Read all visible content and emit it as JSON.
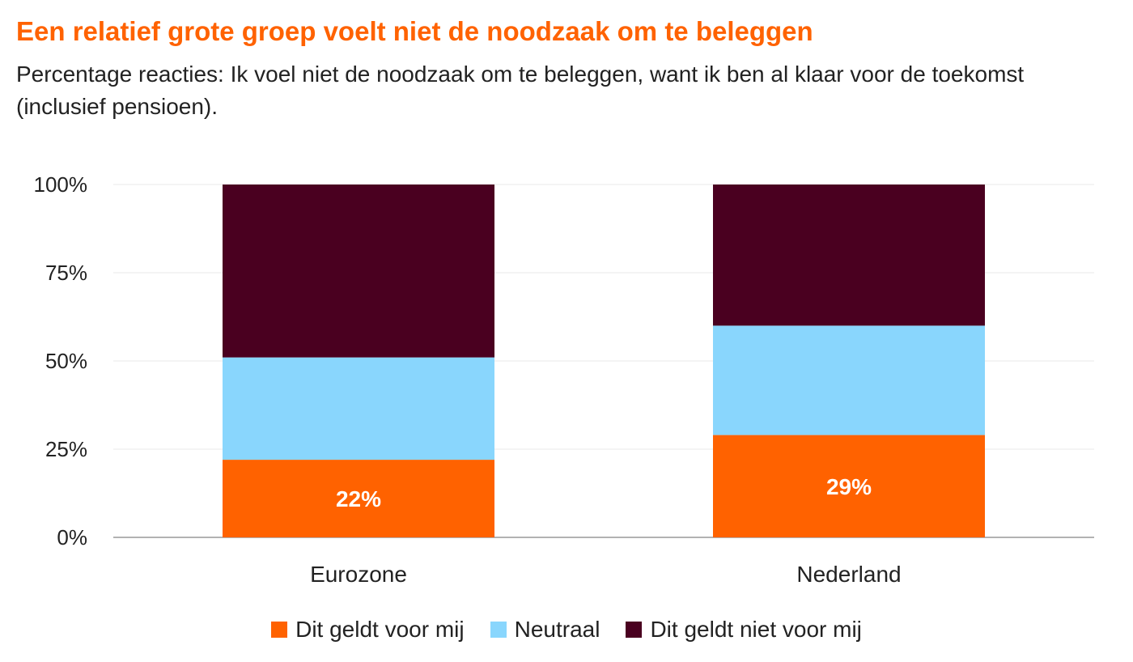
{
  "header": {
    "title": "Een relatief grote groep voelt niet de noodzaak om te beleggen",
    "subtitle": "Percentage reacties: Ik voel niet de noodzaak om te beleggen, want ik ben al klaar voor de toekomst (inclusief pensioen)."
  },
  "chart_data": {
    "type": "bar",
    "stacked": true,
    "categories": [
      "Eurozone",
      "Nederland"
    ],
    "series": [
      {
        "name": "Dit geldt voor mij",
        "color": "#ff6200",
        "values": [
          22,
          29
        ],
        "labels": [
          "22%",
          "29%"
        ]
      },
      {
        "name": "Neutraal",
        "color": "#89d6fd",
        "values": [
          29,
          31
        ],
        "labels": [
          "",
          ""
        ]
      },
      {
        "name": "Dit geldt niet voor mij",
        "color": "#4a0020",
        "values": [
          49,
          40
        ],
        "labels": [
          "",
          ""
        ]
      }
    ],
    "ylim": [
      0,
      100
    ],
    "yticks": [
      0,
      25,
      50,
      75,
      100
    ],
    "ytick_labels": [
      "0%",
      "25%",
      "50%",
      "75%",
      "100%"
    ],
    "grid": true,
    "legend_position": "bottom"
  }
}
